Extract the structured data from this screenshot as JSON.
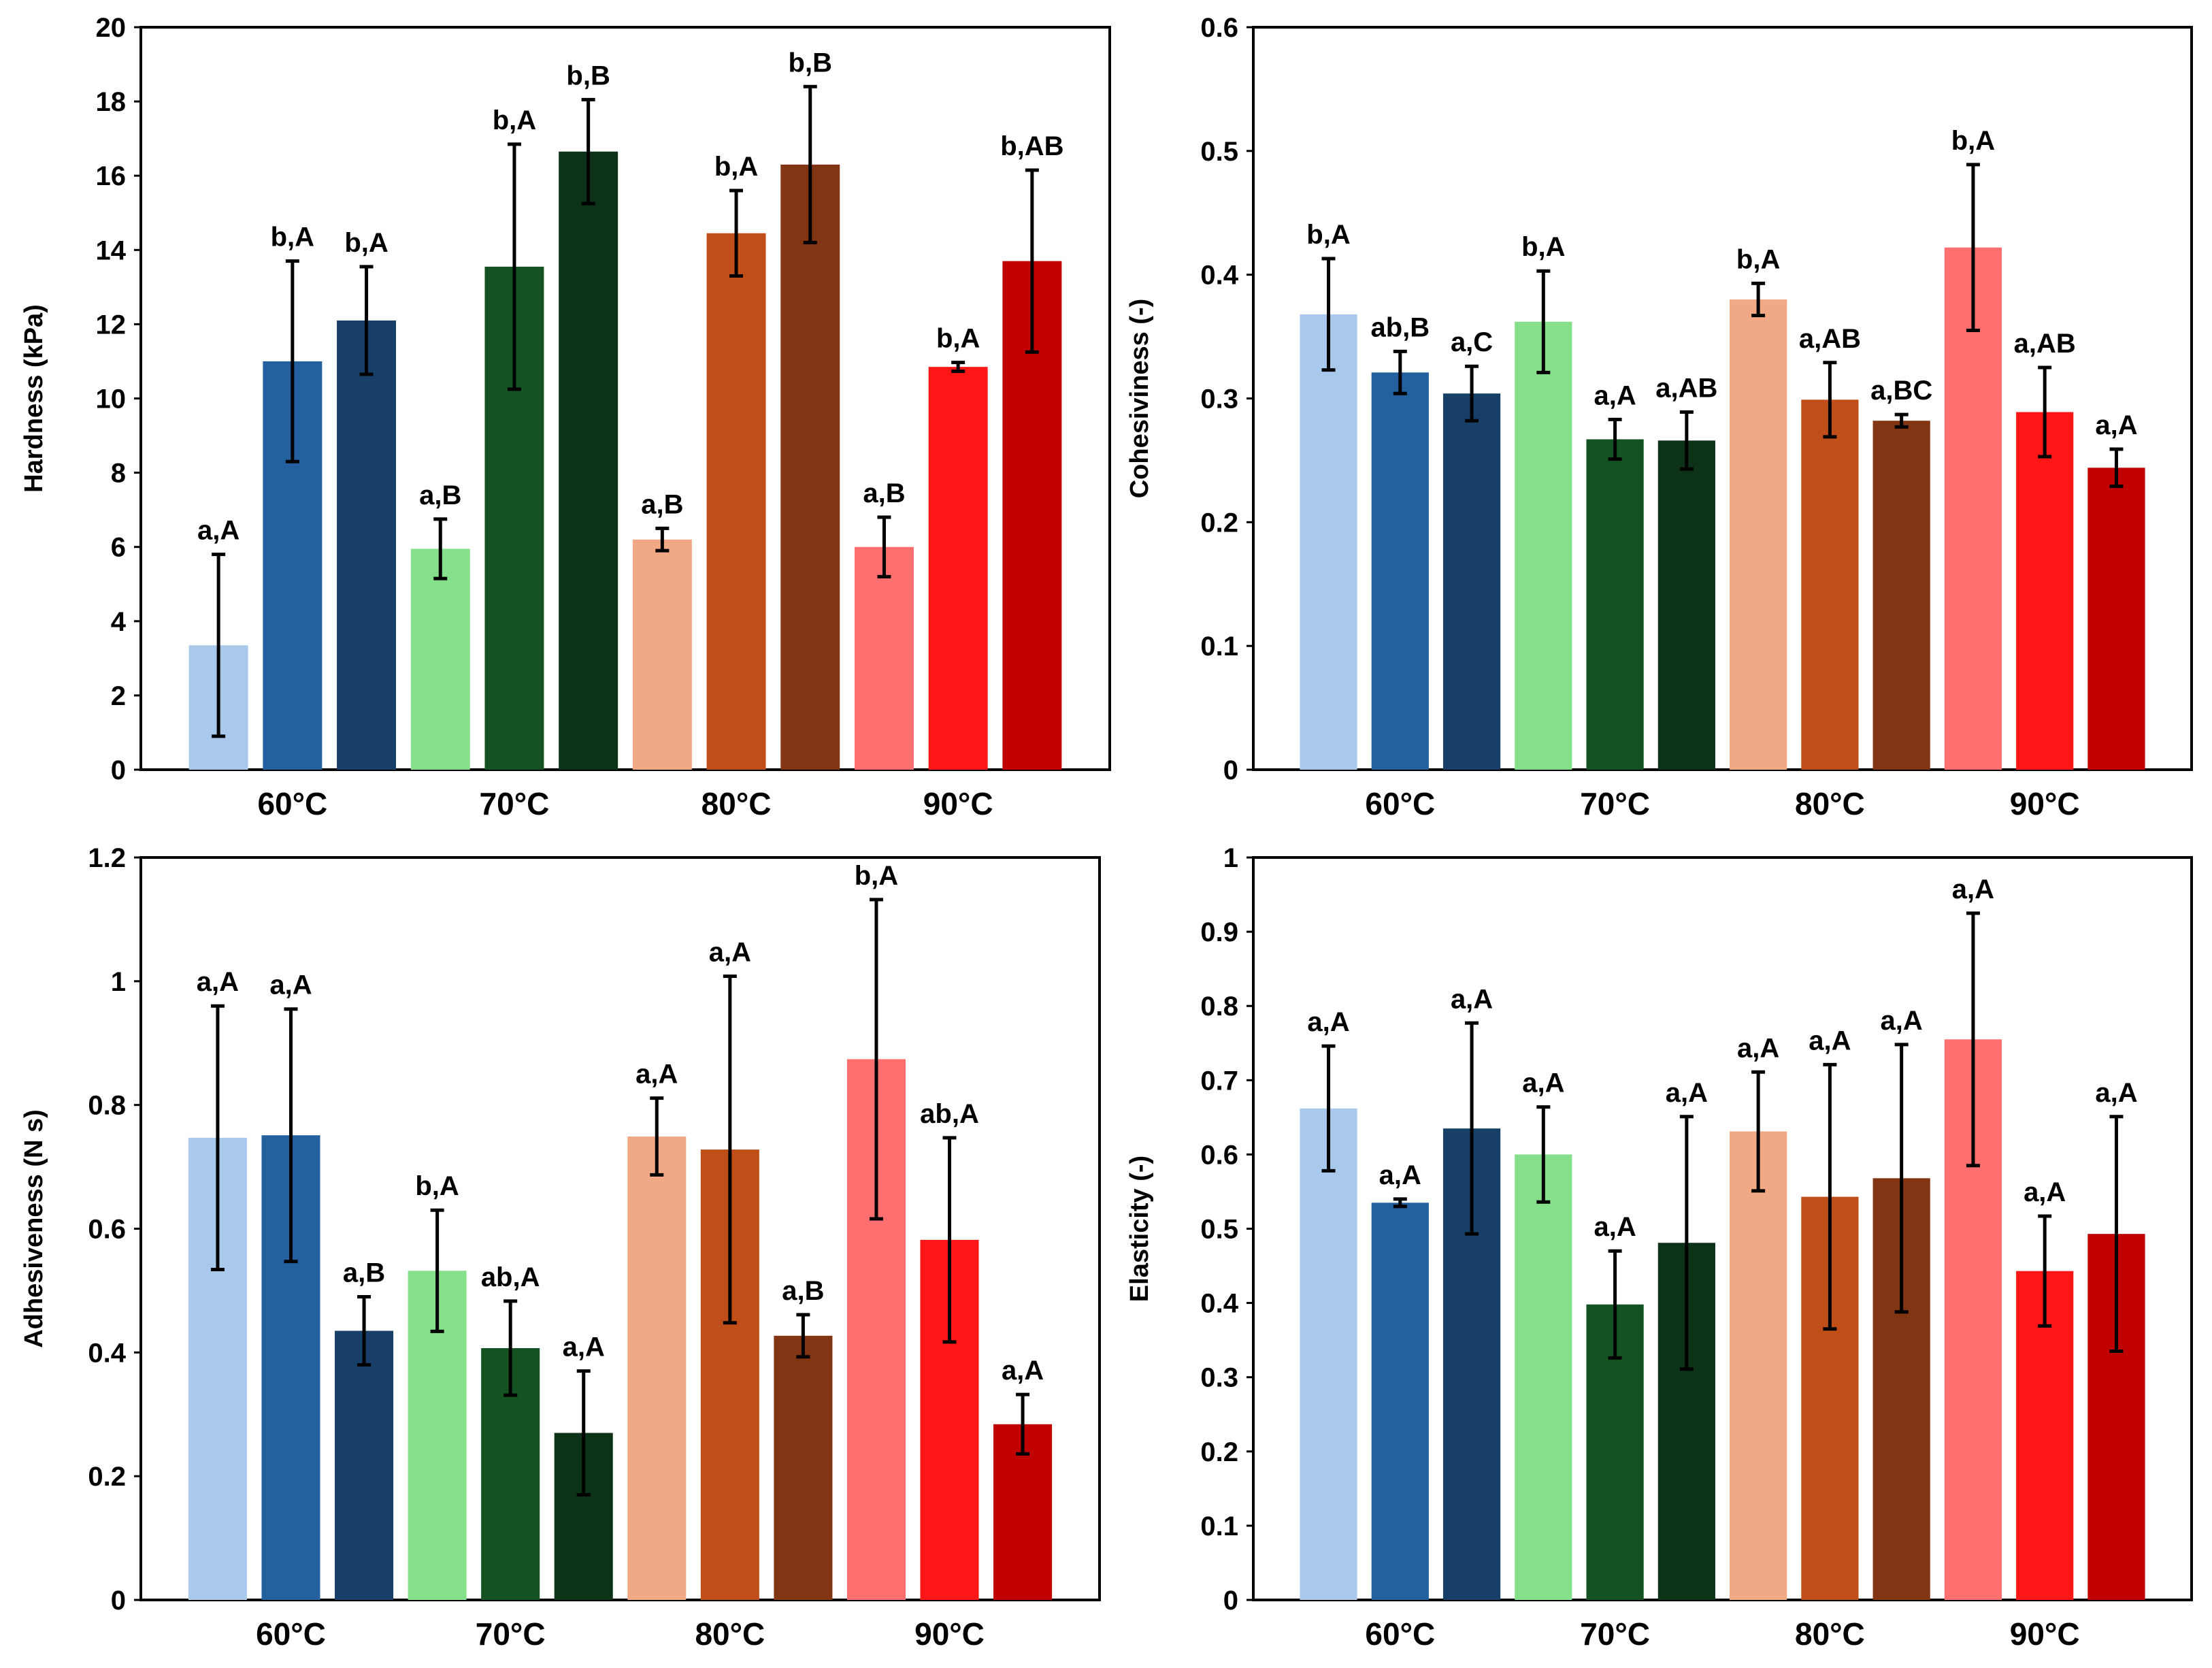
{
  "chart_data": [
    {
      "type": "bar",
      "ylabel": "Hardness (kPa)",
      "ylim": [
        0,
        20
      ],
      "yticks": [
        0,
        2,
        4,
        6,
        8,
        10,
        12,
        14,
        16,
        18,
        20
      ],
      "ytick_labels": [
        "0",
        "2",
        "4",
        "6",
        "8",
        "10",
        "12",
        "14",
        "16",
        "18",
        "20"
      ],
      "categories": [
        "60°C",
        "70°C",
        "80°C",
        "90°C"
      ],
      "bars": [
        {
          "group": 0,
          "color": "#a8c9ec",
          "value": 3.35,
          "err": 2.45,
          "label": "a,A"
        },
        {
          "group": 0,
          "color": "#22609e",
          "value": 11.0,
          "err": 2.7,
          "label": "b,A"
        },
        {
          "group": 0,
          "color": "#173f68",
          "value": 12.1,
          "err": 1.45,
          "label": "b,A"
        },
        {
          "group": 1,
          "color": "#86e08b",
          "value": 5.95,
          "err": 0.8,
          "label": "a,B"
        },
        {
          "group": 1,
          "color": "#155221",
          "value": 13.55,
          "err": 3.3,
          "label": "b,A"
        },
        {
          "group": 1,
          "color": "#0c3317",
          "value": 16.65,
          "err": 1.4,
          "label": "b,B"
        },
        {
          "group": 2,
          "color": "#f0a984",
          "value": 6.2,
          "err": 0.3,
          "label": "a,B"
        },
        {
          "group": 2,
          "color": "#c04e18",
          "value": 14.45,
          "err": 1.15,
          "label": "b,A"
        },
        {
          "group": 2,
          "color": "#813513",
          "value": 16.3,
          "err": 2.1,
          "label": "b,B"
        },
        {
          "group": 3,
          "color": "#ff6f6f",
          "value": 6.0,
          "err": 0.8,
          "label": "a,B"
        },
        {
          "group": 3,
          "color": "#ff1717",
          "value": 10.85,
          "err": 0.12,
          "label": "b,A"
        },
        {
          "group": 3,
          "color": "#c10000",
          "value": 13.7,
          "err": 2.45,
          "label": "b,AB"
        }
      ]
    },
    {
      "type": "bar",
      "ylabel": "Cohesiviness (-)",
      "ylim": [
        0,
        0.6
      ],
      "yticks": [
        0,
        0.1,
        0.2,
        0.3,
        0.4,
        0.5,
        0.6
      ],
      "ytick_labels": [
        "0",
        "0.1",
        "0.2",
        "0.3",
        "0.4",
        "0.5",
        "0.6"
      ],
      "categories": [
        "60°C",
        "70°C",
        "80°C",
        "90°C"
      ],
      "bars": [
        {
          "group": 0,
          "color": "#a8c9ec",
          "value": 0.368,
          "err": 0.045,
          "label": "b,A"
        },
        {
          "group": 0,
          "color": "#22609e",
          "value": 0.321,
          "err": 0.017,
          "label": "ab,B"
        },
        {
          "group": 0,
          "color": "#173f68",
          "value": 0.304,
          "err": 0.022,
          "label": "a,C"
        },
        {
          "group": 1,
          "color": "#86e08b",
          "value": 0.362,
          "err": 0.041,
          "label": "b,A"
        },
        {
          "group": 1,
          "color": "#155221",
          "value": 0.267,
          "err": 0.016,
          "label": "a,A"
        },
        {
          "group": 1,
          "color": "#0c3317",
          "value": 0.266,
          "err": 0.023,
          "label": "a,AB"
        },
        {
          "group": 2,
          "color": "#f0a984",
          "value": 0.38,
          "err": 0.013,
          "label": "b,A"
        },
        {
          "group": 2,
          "color": "#c04e18",
          "value": 0.299,
          "err": 0.03,
          "label": "a,AB"
        },
        {
          "group": 2,
          "color": "#813513",
          "value": 0.282,
          "err": 0.005,
          "label": "a,BC"
        },
        {
          "group": 3,
          "color": "#ff6f6f",
          "value": 0.422,
          "err": 0.067,
          "label": "b,A"
        },
        {
          "group": 3,
          "color": "#ff1717",
          "value": 0.289,
          "err": 0.036,
          "label": "a,AB"
        },
        {
          "group": 3,
          "color": "#c10000",
          "value": 0.244,
          "err": 0.015,
          "label": "a,A"
        }
      ]
    },
    {
      "type": "bar",
      "ylabel": "Adhesiveness (N s)",
      "ylim": [
        0,
        1.2
      ],
      "yticks": [
        0,
        0.2,
        0.4,
        0.6,
        0.8,
        1.0,
        1.2
      ],
      "ytick_labels": [
        "0",
        "0.2",
        "0.4",
        "0.6",
        "0.8",
        "1",
        "1.2"
      ],
      "categories": [
        "60°C",
        "70°C",
        "80°C",
        "90°C"
      ],
      "bars": [
        {
          "group": 0,
          "color": "#a8c9ec",
          "value": 0.747,
          "err": 0.213,
          "label": "a,A"
        },
        {
          "group": 0,
          "color": "#22609e",
          "value": 0.751,
          "err": 0.204,
          "label": "a,A"
        },
        {
          "group": 0,
          "color": "#173f68",
          "value": 0.435,
          "err": 0.055,
          "label": "a,B"
        },
        {
          "group": 1,
          "color": "#86e08b",
          "value": 0.532,
          "err": 0.098,
          "label": "b,A"
        },
        {
          "group": 1,
          "color": "#155221",
          "value": 0.407,
          "err": 0.076,
          "label": "ab,A"
        },
        {
          "group": 1,
          "color": "#0c3317",
          "value": 0.27,
          "err": 0.1,
          "label": "a,A"
        },
        {
          "group": 2,
          "color": "#f0a984",
          "value": 0.749,
          "err": 0.062,
          "label": "a,A"
        },
        {
          "group": 2,
          "color": "#c04e18",
          "value": 0.728,
          "err": 0.28,
          "label": "a,A"
        },
        {
          "group": 2,
          "color": "#813513",
          "value": 0.427,
          "err": 0.034,
          "label": "a,B"
        },
        {
          "group": 3,
          "color": "#ff6f6f",
          "value": 0.874,
          "err": 0.258,
          "label": "b,A"
        },
        {
          "group": 3,
          "color": "#ff1717",
          "value": 0.582,
          "err": 0.165,
          "label": "ab,A"
        },
        {
          "group": 3,
          "color": "#c10000",
          "value": 0.284,
          "err": 0.048,
          "label": "a,A"
        }
      ]
    },
    {
      "type": "bar",
      "ylabel": "Elasticity (-)",
      "ylim": [
        0,
        1
      ],
      "yticks": [
        0,
        0.1,
        0.2,
        0.3,
        0.4,
        0.5,
        0.6,
        0.7,
        0.8,
        0.9,
        1.0
      ],
      "ytick_labels": [
        "0",
        "0.1",
        "0.2",
        "0.3",
        "0.4",
        "0.5",
        "0.6",
        "0.7",
        "0.8",
        "0.9",
        "1"
      ],
      "categories": [
        "60°C",
        "70°C",
        "80°C",
        "90°C"
      ],
      "bars": [
        {
          "group": 0,
          "color": "#a8c9ec",
          "value": 0.662,
          "err": 0.084,
          "label": "a,A"
        },
        {
          "group": 0,
          "color": "#22609e",
          "value": 0.535,
          "err": 0.005,
          "label": "a,A"
        },
        {
          "group": 0,
          "color": "#173f68",
          "value": 0.635,
          "err": 0.142,
          "label": "a,A"
        },
        {
          "group": 1,
          "color": "#86e08b",
          "value": 0.6,
          "err": 0.064,
          "label": "a,A"
        },
        {
          "group": 1,
          "color": "#155221",
          "value": 0.398,
          "err": 0.072,
          "label": "a,A"
        },
        {
          "group": 1,
          "color": "#0c3317",
          "value": 0.481,
          "err": 0.17,
          "label": "a,A"
        },
        {
          "group": 2,
          "color": "#f0a984",
          "value": 0.631,
          "err": 0.08,
          "label": "a,A"
        },
        {
          "group": 2,
          "color": "#c04e18",
          "value": 0.543,
          "err": 0.178,
          "label": "a,A"
        },
        {
          "group": 2,
          "color": "#813513",
          "value": 0.568,
          "err": 0.18,
          "label": "a,A"
        },
        {
          "group": 3,
          "color": "#ff6f6f",
          "value": 0.755,
          "err": 0.17,
          "label": "a,A"
        },
        {
          "group": 3,
          "color": "#ff1717",
          "value": 0.443,
          "err": 0.074,
          "label": "a,A"
        },
        {
          "group": 3,
          "color": "#c10000",
          "value": 0.493,
          "err": 0.158,
          "label": "a,A"
        }
      ]
    }
  ]
}
